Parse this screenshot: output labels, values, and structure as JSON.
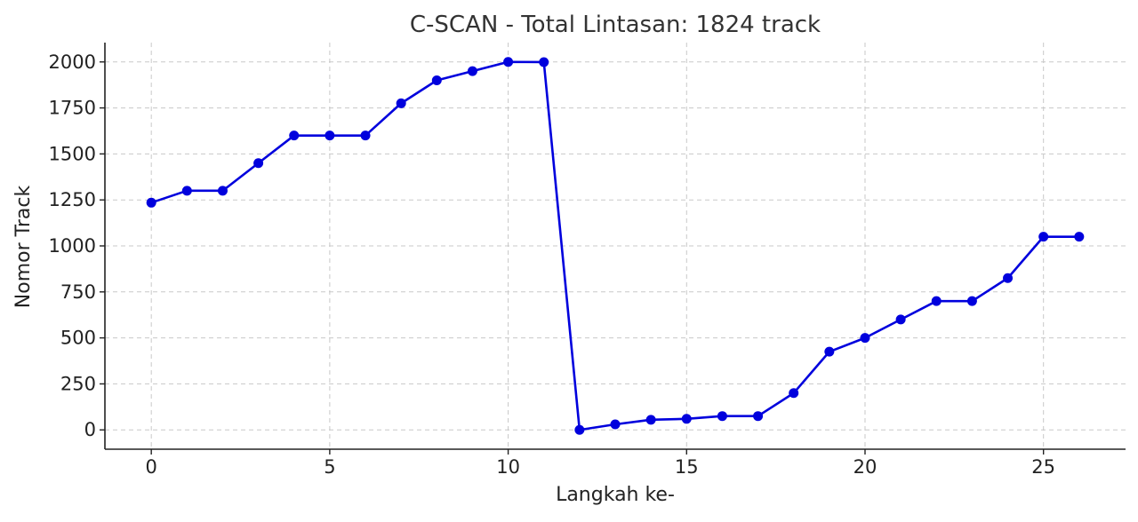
{
  "chart_data": {
    "type": "line",
    "title": "C-SCAN - Total Lintasan: 1824 track",
    "xlabel": "Langkah ke-",
    "ylabel": "Nomor Track",
    "xlim": [
      -1.3,
      27.3
    ],
    "ylim": [
      -105,
      2105
    ],
    "xticks": [
      0,
      5,
      10,
      15,
      20,
      25
    ],
    "yticks": [
      0,
      250,
      500,
      750,
      1000,
      1250,
      1500,
      1750,
      2000
    ],
    "grid": true,
    "color": "#0000dd",
    "series": [
      {
        "x": [
          0,
          1,
          2,
          3,
          4,
          5,
          6,
          7,
          8,
          9,
          10,
          11,
          12,
          13,
          14,
          15,
          16,
          17,
          18,
          19,
          20,
          21,
          22,
          23,
          24,
          25,
          26
        ],
        "values": [
          1235,
          1300,
          1300,
          1450,
          1600,
          1600,
          1600,
          1775,
          1900,
          1950,
          2000,
          1999,
          0,
          30,
          55,
          60,
          75,
          75,
          200,
          425,
          500,
          600,
          700,
          700,
          825,
          1050,
          1050
        ]
      }
    ]
  }
}
